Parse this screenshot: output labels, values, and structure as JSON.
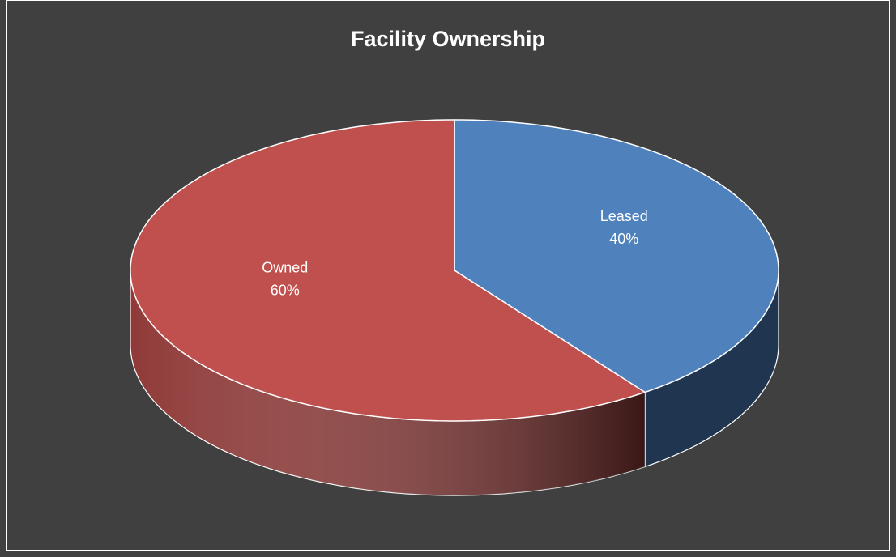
{
  "chart_data": {
    "type": "pie",
    "title": "Facility Ownership",
    "categories": [
      "Leased",
      "Owned"
    ],
    "values": [
      40,
      60
    ],
    "value_labels": [
      "40%",
      "60%"
    ],
    "colors": [
      "#4f81bd",
      "#c0504d"
    ],
    "side_colors": [
      "#1f3550",
      "#8f3a38"
    ]
  }
}
